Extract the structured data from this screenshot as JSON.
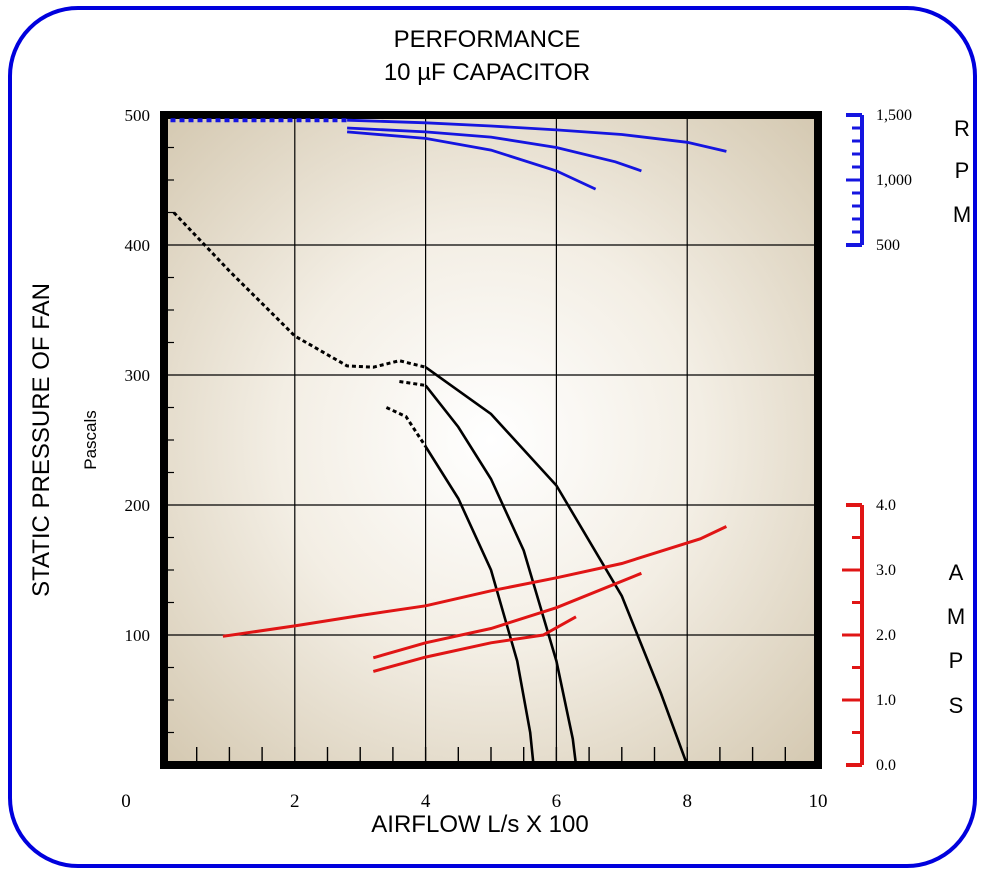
{
  "chart_data": {
    "type": "line",
    "title": "PERFORMANCE",
    "subtitle": "10 µF CAPACITOR",
    "xlabel": "AIRFLOW L/s X 100",
    "ylabel": "STATIC PRESSURE OF FAN",
    "ylabel_units": "Pascals",
    "xlim": [
      0,
      10
    ],
    "ylim": [
      0,
      500
    ],
    "x_ticks": [
      "0",
      "2",
      "4",
      "6",
      "8",
      "10"
    ],
    "y_ticks": [
      "100",
      "200",
      "300",
      "400",
      "500"
    ],
    "grid": true,
    "rpm_axis": {
      "label_letters": [
        "R",
        "P",
        "M"
      ],
      "ticks": [
        "1,500",
        "1,000",
        "500"
      ],
      "range": [
        500,
        1500
      ],
      "color": "#1515e0"
    },
    "amps_axis": {
      "label_letters": [
        "A",
        "M",
        "P",
        "S"
      ],
      "ticks": [
        "4.0",
        "3.0",
        "2.0",
        "1.0",
        "0.0"
      ],
      "range": [
        0.0,
        4.0
      ],
      "color": "#e01515"
    },
    "colors": {
      "pressure": "#000000",
      "rpm": "#1515e0",
      "amps": "#e01515",
      "border": "#0000dd",
      "plot_bg_center": "#ffffff",
      "plot_bg_edge": "#d5cab4"
    },
    "pressure_dotted": [
      {
        "x": 0.15,
        "y": 425
      },
      {
        "x": 1.0,
        "y": 380
      },
      {
        "x": 2.0,
        "y": 330
      },
      {
        "x": 2.8,
        "y": 307
      },
      {
        "x": 3.2,
        "y": 306
      },
      {
        "x": 3.6,
        "y": 311
      },
      {
        "x": 4.0,
        "y": 306
      }
    ],
    "pressure_series": [
      {
        "dotted_start": [
          {
            "x": 3.4,
            "y": 275
          },
          {
            "x": 3.7,
            "y": 268
          },
          {
            "x": 4.0,
            "y": 245
          }
        ],
        "points": [
          {
            "x": 4.0,
            "y": 245
          },
          {
            "x": 4.5,
            "y": 205
          },
          {
            "x": 5.0,
            "y": 150
          },
          {
            "x": 5.4,
            "y": 80
          },
          {
            "x": 5.6,
            "y": 25
          },
          {
            "x": 5.65,
            "y": 0
          }
        ]
      },
      {
        "dotted_start": [
          {
            "x": 3.6,
            "y": 295
          },
          {
            "x": 4.0,
            "y": 292
          }
        ],
        "points": [
          {
            "x": 4.0,
            "y": 292
          },
          {
            "x": 4.5,
            "y": 260
          },
          {
            "x": 5.0,
            "y": 220
          },
          {
            "x": 5.5,
            "y": 165
          },
          {
            "x": 6.0,
            "y": 80
          },
          {
            "x": 6.25,
            "y": 20
          },
          {
            "x": 6.3,
            "y": 0
          }
        ]
      },
      {
        "dotted_start": [],
        "points": [
          {
            "x": 4.0,
            "y": 306
          },
          {
            "x": 5.0,
            "y": 270
          },
          {
            "x": 6.0,
            "y": 215
          },
          {
            "x": 7.0,
            "y": 130
          },
          {
            "x": 7.6,
            "y": 55
          },
          {
            "x": 8.0,
            "y": 0
          }
        ]
      }
    ],
    "rpm_dotted": [
      {
        "x": 0.1,
        "y": 1460
      },
      {
        "x": 2.8,
        "y": 1460
      }
    ],
    "rpm_series": [
      {
        "points": [
          {
            "x": 2.8,
            "y": 1460
          },
          {
            "x": 4.0,
            "y": 1440
          },
          {
            "x": 5.0,
            "y": 1415
          },
          {
            "x": 6.0,
            "y": 1385
          },
          {
            "x": 7.0,
            "y": 1350
          },
          {
            "x": 8.0,
            "y": 1290
          },
          {
            "x": 8.6,
            "y": 1220
          }
        ]
      },
      {
        "points": [
          {
            "x": 2.8,
            "y": 1400
          },
          {
            "x": 4.0,
            "y": 1370
          },
          {
            "x": 5.0,
            "y": 1330
          },
          {
            "x": 6.0,
            "y": 1250
          },
          {
            "x": 6.9,
            "y": 1140
          },
          {
            "x": 7.3,
            "y": 1070
          }
        ]
      },
      {
        "points": [
          {
            "x": 2.8,
            "y": 1370
          },
          {
            "x": 4.0,
            "y": 1320
          },
          {
            "x": 5.0,
            "y": 1230
          },
          {
            "x": 6.0,
            "y": 1070
          },
          {
            "x": 6.6,
            "y": 930
          }
        ]
      }
    ],
    "amps_series": [
      {
        "points": [
          {
            "x": 0.9,
            "y": 1.98
          },
          {
            "x": 2.0,
            "y": 2.14
          },
          {
            "x": 3.0,
            "y": 2.3
          },
          {
            "x": 4.0,
            "y": 2.45
          },
          {
            "x": 5.0,
            "y": 2.68
          },
          {
            "x": 6.0,
            "y": 2.88
          },
          {
            "x": 7.0,
            "y": 3.1
          },
          {
            "x": 8.2,
            "y": 3.48
          },
          {
            "x": 8.6,
            "y": 3.67
          }
        ]
      },
      {
        "points": [
          {
            "x": 3.2,
            "y": 1.65
          },
          {
            "x": 4.0,
            "y": 1.88
          },
          {
            "x": 5.0,
            "y": 2.1
          },
          {
            "x": 6.0,
            "y": 2.42
          },
          {
            "x": 7.3,
            "y": 2.95
          }
        ]
      },
      {
        "points": [
          {
            "x": 3.2,
            "y": 1.44
          },
          {
            "x": 4.0,
            "y": 1.66
          },
          {
            "x": 5.0,
            "y": 1.88
          },
          {
            "x": 5.8,
            "y": 2.0
          },
          {
            "x": 6.3,
            "y": 2.28
          }
        ]
      }
    ]
  }
}
